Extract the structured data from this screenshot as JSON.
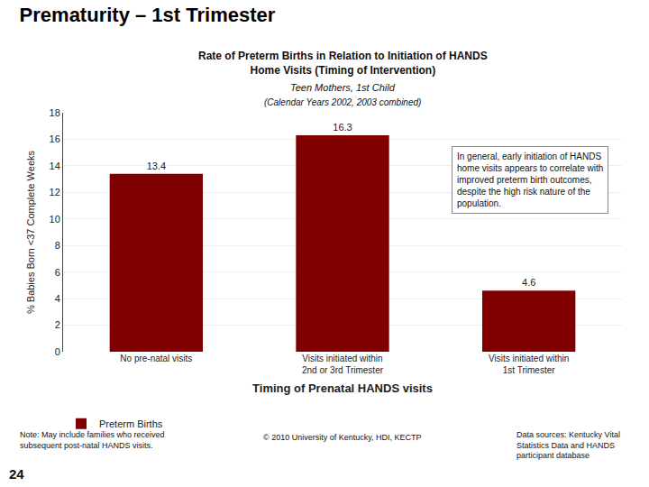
{
  "chart_data": {
    "type": "bar",
    "title": "Prematurity – 1st Trimester",
    "subtitle": [
      "Rate of Preterm Births in Relation to Initiation of HANDS\nHome Visits (Timing of Intervention)",
      "Teen Mothers, 1st Child",
      "(Calendar Years 2002, 2003 combined)"
    ],
    "categories": [
      "No pre-natal visits",
      "Visits initiated within\n2nd or 3rd Trimester",
      "Visits initiated within\n1st Trimester"
    ],
    "series": [
      {
        "name": "Preterm Births",
        "color": "#800000",
        "values": [
          13.4,
          16.3,
          4.6
        ]
      }
    ],
    "xlabel": "Timing of Prenatal HANDS visits",
    "ylabel": "% Babies Born <37 Complete Weeks",
    "ylim": [
      0,
      18
    ],
    "yticks": [
      0,
      2,
      4,
      6,
      8,
      10,
      12,
      14,
      16,
      18
    ],
    "grid": true,
    "legend": "bottom",
    "data_labels": true,
    "annotations": [
      "In general, early initiation of HANDS\nhome visits appears to correlate with\nimproved preterm birth outcomes,\ndespite the high risk nature of the\npopulation.",
      "Note: May include families who received\nsubsequent post-natal HANDS visits.",
      "© 2010 University of Kentucky, HDI, KECTP",
      "Data sources: Kentucky Vital\nStatistics Data and HANDS\nparticipant database",
      "24"
    ]
  }
}
